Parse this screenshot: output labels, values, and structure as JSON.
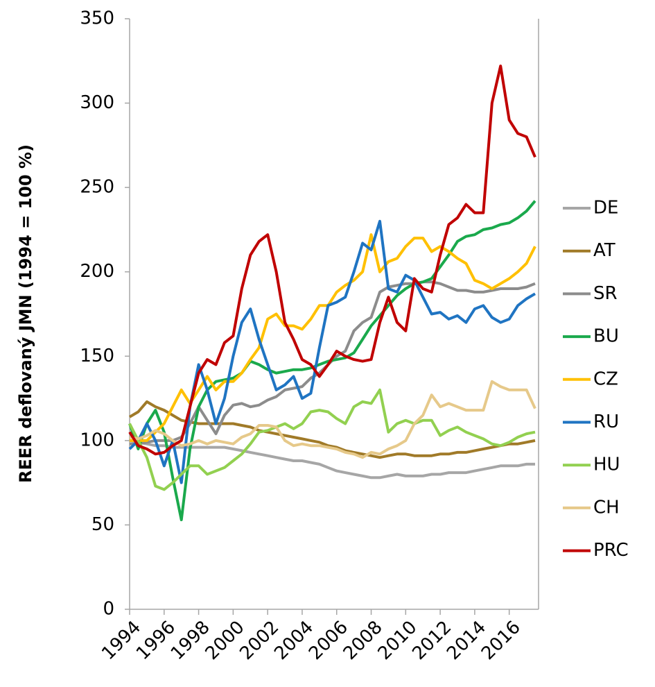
{
  "chart_data": {
    "type": "line",
    "y_label": "REER deflovaný JMN (1994 = 100 %)",
    "x": [
      1994,
      1994.5,
      1995,
      1995.5,
      1996,
      1996.5,
      1997,
      1997.5,
      1998,
      1998.5,
      1999,
      1999.5,
      2000,
      2000.5,
      2001,
      2001.5,
      2002,
      2002.5,
      2003,
      2003.5,
      2004,
      2004.5,
      2005,
      2005.5,
      2006,
      2006.5,
      2007,
      2007.5,
      2008,
      2008.5,
      2009,
      2009.5,
      2010,
      2010.5,
      2011,
      2011.5,
      2012,
      2012.5,
      2013,
      2013.5,
      2014,
      2014.5,
      2015,
      2015.5,
      2016,
      2016.5,
      2017,
      2017.5
    ],
    "xlim": [
      1994,
      2017.7
    ],
    "xticks": [
      1994,
      1996,
      1998,
      2000,
      2002,
      2004,
      2006,
      2008,
      2010,
      2012,
      2014,
      2016
    ],
    "ylim": [
      0,
      350
    ],
    "yticks": [
      0,
      50,
      100,
      150,
      200,
      250,
      300,
      350
    ],
    "grid": false,
    "legend": "right",
    "series": [
      {
        "name": "DE",
        "color": "#a6a6a6",
        "values": [
          100,
          99,
          98,
          97,
          97,
          96,
          96,
          96,
          96,
          96,
          96,
          96,
          95,
          94,
          93,
          92,
          91,
          90,
          89,
          88,
          88,
          87,
          86,
          84,
          82,
          81,
          80,
          79,
          78,
          78,
          79,
          80,
          79,
          79,
          79,
          80,
          80,
          81,
          81,
          81,
          82,
          83,
          84,
          85,
          85,
          85,
          86,
          86
        ]
      },
      {
        "name": "AT",
        "color": "#a07a28",
        "values": [
          114,
          117,
          123,
          120,
          118,
          115,
          112,
          111,
          110,
          110,
          110,
          110,
          110,
          109,
          108,
          106,
          105,
          104,
          103,
          102,
          101,
          100,
          99,
          97,
          96,
          94,
          93,
          92,
          91,
          90,
          91,
          92,
          92,
          91,
          91,
          91,
          92,
          92,
          93,
          93,
          94,
          95,
          96,
          97,
          98,
          98,
          99,
          100
        ]
      },
      {
        "name": "SR",
        "color": "#8c8c8c",
        "values": [
          98,
          98,
          99,
          100,
          100,
          100,
          102,
          110,
          120,
          112,
          104,
          115,
          121,
          122,
          120,
          121,
          124,
          126,
          130,
          131,
          132,
          137,
          140,
          145,
          150,
          153,
          165,
          170,
          173,
          188,
          191,
          192,
          193,
          193,
          194,
          194,
          193,
          191,
          189,
          189,
          188,
          188,
          189,
          190,
          190,
          190,
          191,
          193
        ]
      },
      {
        "name": "BU",
        "color": "#1aa94c",
        "values": [
          110,
          95,
          110,
          118,
          105,
          78,
          53,
          95,
          120,
          130,
          135,
          136,
          137,
          140,
          147,
          145,
          142,
          140,
          141,
          142,
          142,
          143,
          145,
          147,
          148,
          149,
          152,
          160,
          168,
          174,
          180,
          186,
          190,
          193,
          194,
          196,
          203,
          210,
          218,
          221,
          222,
          225,
          226,
          228,
          229,
          232,
          236,
          242
        ]
      },
      {
        "name": "CZ",
        "color": "#ffc000",
        "values": [
          100,
          100,
          100,
          105,
          110,
          120,
          130,
          122,
          130,
          138,
          130,
          135,
          135,
          140,
          148,
          155,
          172,
          175,
          168,
          168,
          166,
          172,
          180,
          180,
          188,
          192,
          195,
          200,
          222,
          200,
          206,
          208,
          215,
          220,
          220,
          212,
          215,
          212,
          208,
          205,
          195,
          193,
          190,
          193,
          196,
          200,
          205,
          215
        ]
      },
      {
        "name": "RU",
        "color": "#1f74c2",
        "values": [
          95,
          100,
          110,
          100,
          85,
          100,
          75,
          120,
          145,
          130,
          110,
          125,
          150,
          170,
          178,
          160,
          145,
          130,
          133,
          138,
          125,
          128,
          155,
          180,
          182,
          185,
          200,
          217,
          213,
          230,
          190,
          188,
          198,
          195,
          185,
          175,
          176,
          172,
          174,
          170,
          178,
          180,
          173,
          170,
          172,
          180,
          184,
          187
        ]
      },
      {
        "name": "HU",
        "color": "#92d050",
        "values": [
          110,
          100,
          90,
          73,
          71,
          75,
          80,
          85,
          85,
          80,
          82,
          84,
          88,
          92,
          98,
          105,
          106,
          108,
          110,
          107,
          110,
          117,
          118,
          117,
          113,
          110,
          120,
          123,
          122,
          130,
          105,
          110,
          112,
          110,
          112,
          112,
          103,
          106,
          108,
          105,
          103,
          101,
          98,
          97,
          99,
          102,
          104,
          105
        ]
      },
      {
        "name": "CH",
        "color": "#e6c98a",
        "values": [
          102,
          101,
          103,
          106,
          104,
          100,
          97,
          98,
          100,
          98,
          100,
          99,
          98,
          102,
          104,
          109,
          109,
          108,
          100,
          97,
          98,
          97,
          97,
          96,
          95,
          93,
          92,
          90,
          93,
          92,
          95,
          97,
          100,
          110,
          115,
          127,
          120,
          122,
          120,
          118,
          118,
          118,
          135,
          132,
          130,
          130,
          130,
          119
        ]
      },
      {
        "name": "PRC",
        "color": "#c00000",
        "values": [
          105,
          97,
          95,
          92,
          93,
          97,
          100,
          120,
          140,
          148,
          145,
          158,
          162,
          190,
          210,
          218,
          222,
          200,
          170,
          160,
          148,
          145,
          138,
          145,
          153,
          150,
          148,
          147,
          148,
          170,
          185,
          170,
          165,
          196,
          190,
          188,
          210,
          228,
          232,
          240,
          235,
          235,
          300,
          322,
          290,
          282,
          280,
          268
        ]
      }
    ]
  }
}
